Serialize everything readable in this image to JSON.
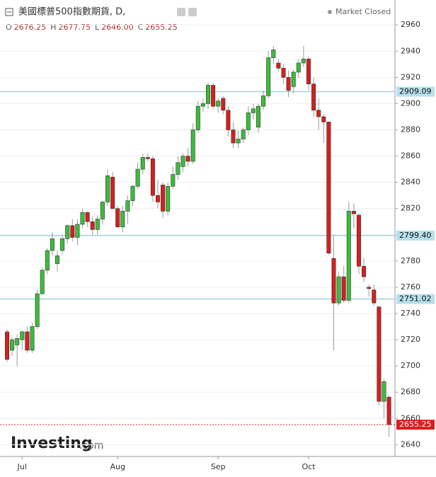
{
  "chart_data": {
    "type": "candlestick",
    "title": "美國標普500指數期貨, D,",
    "status": "Market Closed",
    "ohlc_header": [
      {
        "name": "O",
        "price": {
          "value": 2676.25,
          "label": "2676.25"
        }
      },
      {
        "name": "H",
        "price": {
          "value": 2677.75,
          "label": "2677.75"
        }
      },
      {
        "name": "L",
        "price": {
          "value": 2646,
          "label": "2646.00"
        }
      },
      {
        "name": "C",
        "price": {
          "value": 2655.25,
          "label": "2655.25"
        }
      }
    ],
    "logo": [
      "Investing",
      ".com"
    ],
    "up_color": "#3cbc3c",
    "down_color": "#d61f1f",
    "categories": [
      null,
      null,
      null,
      "Jul",
      null,
      null,
      null,
      null,
      null,
      null,
      null,
      null,
      null,
      null,
      null,
      null,
      null,
      null,
      null,
      null,
      null,
      null,
      "Aug",
      null,
      null,
      null,
      null,
      null,
      null,
      null,
      null,
      null,
      null,
      null,
      null,
      null,
      null,
      null,
      null,
      null,
      null,
      null,
      "Sep",
      null,
      null,
      null,
      null,
      null,
      null,
      null,
      null,
      null,
      null,
      null,
      null,
      null,
      null,
      null,
      null,
      null,
      "Oct",
      null,
      null,
      null,
      null,
      null,
      null,
      null,
      null,
      null,
      null,
      null,
      null,
      null,
      null,
      null,
      null
    ],
    "open": [
      2726,
      2712,
      2716,
      2720,
      2726,
      2712,
      2730,
      2755,
      2773,
      2788,
      2778,
      2788,
      2797,
      2807,
      2798,
      2808,
      2817,
      2810,
      2804,
      2812,
      2825,
      2844,
      2820,
      2806,
      2818,
      2826,
      2837,
      2850,
      2859,
      2858,
      2830,
      2838,
      2818,
      2837,
      2846,
      2852,
      2860,
      2856,
      2880,
      2898,
      2900,
      2914,
      2898,
      2904,
      2895,
      2880,
      2870,
      2873,
      2880,
      2893,
      2882,
      2898,
      2906,
      2935,
      2931,
      2927,
      2920,
      2913,
      2924,
      2931,
      2934,
      2915,
      2895,
      2890,
      2886,
      2782,
      2748,
      2768,
      2750,
      2818,
      2815,
      2776,
      2760,
      2758,
      2745,
      2673,
      2676.25
    ],
    "high": [
      2728,
      2722,
      2724,
      2727,
      2730,
      2733,
      2758,
      2775,
      2790,
      2802,
      2788,
      2800,
      2808,
      2812,
      2812,
      2820,
      2818,
      2814,
      2815,
      2826,
      2850,
      2848,
      2822,
      2822,
      2830,
      2838,
      2855,
      2862,
      2862,
      2860,
      2842,
      2840,
      2840,
      2852,
      2860,
      2862,
      2866,
      2885,
      2902,
      2904,
      2916,
      2916,
      2904,
      2906,
      2898,
      2886,
      2880,
      2882,
      2898,
      2900,
      2900,
      2910,
      2940,
      2944,
      2934,
      2930,
      2925,
      2926,
      2934,
      2944,
      2936,
      2920,
      2904,
      2892,
      2886,
      2800,
      2772,
      2776,
      2825,
      2824,
      2816,
      2782,
      2762,
      2762,
      2746,
      2690,
      2677.75
    ],
    "low": [
      2703,
      2708,
      2700,
      2712,
      2710,
      2710,
      2728,
      2755,
      2770,
      2784,
      2772,
      2785,
      2793,
      2795,
      2792,
      2805,
      2806,
      2800,
      2800,
      2808,
      2822,
      2820,
      2805,
      2802,
      2808,
      2822,
      2835,
      2846,
      2856,
      2825,
      2820,
      2813,
      2815,
      2835,
      2842,
      2848,
      2852,
      2854,
      2878,
      2894,
      2896,
      2896,
      2893,
      2892,
      2875,
      2866,
      2866,
      2870,
      2876,
      2888,
      2878,
      2895,
      2904,
      2930,
      2925,
      2915,
      2905,
      2908,
      2920,
      2928,
      2910,
      2890,
      2880,
      2870,
      2785,
      2712,
      2746,
      2748,
      2748,
      2805,
      2770,
      2764,
      2753,
      2746,
      2670,
      2660,
      2646
    ],
    "close": [
      2705,
      2720,
      2721,
      2726,
      2712,
      2730,
      2755,
      2773,
      2788,
      2797,
      2784,
      2797,
      2807,
      2798,
      2808,
      2817,
      2810,
      2804,
      2812,
      2825,
      2845,
      2820,
      2806,
      2818,
      2826,
      2837,
      2850,
      2859,
      2858,
      2830,
      2825,
      2818,
      2837,
      2846,
      2855,
      2860,
      2856,
      2880,
      2898,
      2900,
      2914,
      2898,
      2902,
      2895,
      2880,
      2870,
      2873,
      2880,
      2893,
      2896,
      2898,
      2906,
      2935,
      2941,
      2927,
      2920,
      2910,
      2924,
      2931,
      2934,
      2915,
      2895,
      2890,
      2886,
      2786,
      2748,
      2768,
      2750,
      2818,
      2816,
      2776,
      2768,
      2759,
      2748,
      2673,
      2688,
      2655.25
    ],
    "levels": [
      {
        "value": 2909.09,
        "label": "2909.09"
      },
      {
        "value": 2799.4,
        "label": "2799.40"
      },
      {
        "value": 2751.02,
        "label": "2751.02"
      }
    ],
    "last_price": {
      "value": 2655.25,
      "label": "2655.25"
    },
    "ylim": [
      2631,
      2979
    ],
    "yticks": [
      2640,
      2660,
      2680,
      2700,
      2720,
      2740,
      2760,
      2780,
      2800,
      2820,
      2840,
      2860,
      2880,
      2900,
      2920,
      2940,
      2960
    ],
    "grid": true
  }
}
